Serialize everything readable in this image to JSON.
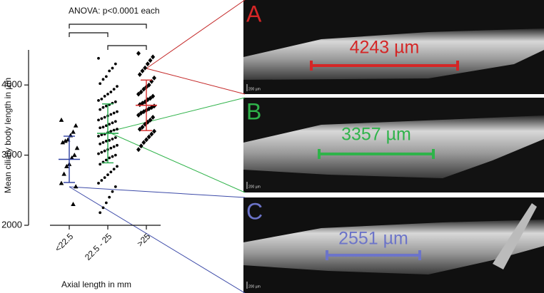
{
  "chart_data": {
    "type": "strip",
    "annotation": "ANOVA: p<0.0001 each",
    "y_label": "Mean ciliary body length in µm",
    "x_label": "Axial length in mm",
    "categories": [
      "<22.5",
      "22.5 - 25",
      ">25"
    ],
    "ylim": [
      2000,
      4500
    ],
    "yticks": [
      2000,
      3000,
      4000
    ],
    "series": [
      {
        "marker": "triangle",
        "color": "#2b3da0",
        "mean": 2940,
        "sd": 330,
        "values": [
          3500,
          3420,
          3330,
          3280,
          3220,
          3200,
          3180,
          3100,
          3000,
          2960,
          2870,
          2840,
          2730,
          2600,
          2551,
          2300
        ]
      },
      {
        "marker": "circle",
        "color": "#22a84a",
        "mean": 3310,
        "sd": 420,
        "values": [
          4380,
          4300,
          4240,
          4200,
          4120,
          4080,
          4020,
          3980,
          3940,
          3900,
          3870,
          3840,
          3800,
          3780,
          3760,
          3740,
          3720,
          3700,
          3680,
          3650,
          3620,
          3600,
          3580,
          3560,
          3540,
          3520,
          3500,
          3480,
          3460,
          3440,
          3420,
          3400,
          3390,
          3370,
          3357,
          3340,
          3320,
          3300,
          3290,
          3270,
          3250,
          3230,
          3210,
          3200,
          3180,
          3160,
          3140,
          3120,
          3100,
          3080,
          3060,
          3040,
          3020,
          3000,
          2980,
          2960,
          2930,
          2900,
          2870,
          2840,
          2800,
          2760,
          2720,
          2680,
          2640,
          2600,
          2550,
          2480,
          2400,
          2320,
          2250,
          2180
        ]
      },
      {
        "marker": "diamond",
        "color": "#d42b2b",
        "mean": 3710,
        "sd": 360,
        "values": [
          4450,
          4400,
          4350,
          4300,
          4243,
          4200,
          4150,
          4100,
          4050,
          4000,
          3970,
          3940,
          3900,
          3870,
          3840,
          3810,
          3790,
          3760,
          3740,
          3720,
          3700,
          3680,
          3660,
          3640,
          3620,
          3600,
          3570,
          3540,
          3500,
          3470,
          3440,
          3400,
          3370,
          3340,
          3300,
          3260,
          3220,
          3180,
          3130,
          3080
        ]
      }
    ],
    "panels": [
      {
        "label": "A",
        "measurement": "4243 µm",
        "scale": "200 µm",
        "color": "#d42626"
      },
      {
        "label": "B",
        "measurement": "3357 µm",
        "scale": "200 µm",
        "color": "#2fb34a"
      },
      {
        "label": "C",
        "measurement": "2551 µm",
        "scale": "200 µm",
        "color": "#6c74c9"
      }
    ]
  }
}
